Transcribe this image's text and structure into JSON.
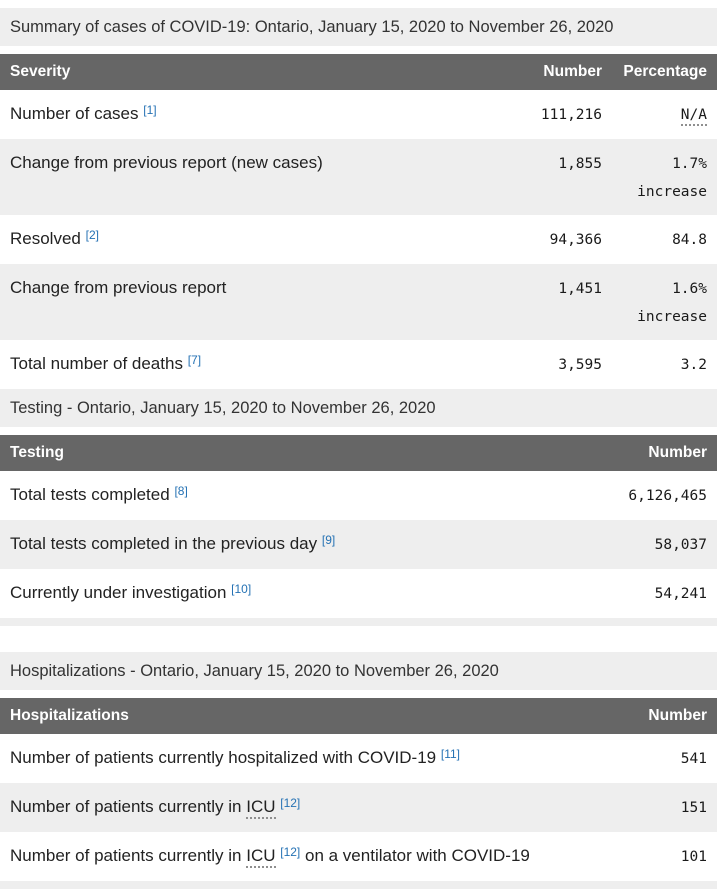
{
  "colors": {
    "header_bg": "#666666",
    "header_text": "#ffffff",
    "zebra_stripe": "#eeeeee",
    "caption_bg": "#eeeeee",
    "footnote_link": "#2572b4",
    "label_text": "#222222"
  },
  "summary_table": {
    "caption": "Summary of cases of COVID-19: Ontario, January 15, 2020 to November 26, 2020",
    "col_label": "Severity",
    "col_number": "Number",
    "col_percentage": "Percentage",
    "rows": {
      "cases": {
        "label": "Number of cases",
        "footnote": "[1]",
        "number": "111,216",
        "percent": "N/A"
      },
      "change_new": {
        "label": "Change from previous report (new cases)",
        "number": "1,855",
        "percent": "1.7%",
        "percent_note": "increase"
      },
      "resolved": {
        "label": "Resolved",
        "footnote": "[2]",
        "number": "94,366",
        "percent": "84.8"
      },
      "change_prev": {
        "label": "Change from previous report",
        "number": "1,451",
        "percent": "1.6%",
        "percent_note": "increase"
      },
      "deaths": {
        "label": "Total number of deaths",
        "footnote": "[7]",
        "number": "3,595",
        "percent": "3.2"
      }
    }
  },
  "testing_table": {
    "caption": "Testing - Ontario, January 15, 2020 to November 26, 2020",
    "col_label": "Testing",
    "col_number": "Number",
    "rows": {
      "total_tests": {
        "label": "Total tests completed",
        "footnote": "[8]",
        "number": "6,126,465"
      },
      "previous_day": {
        "label": "Total tests completed in the previous day",
        "footnote": "[9]",
        "number": "58,037"
      },
      "under_investigation": {
        "label": "Currently under investigation",
        "footnote": "[10]",
        "number": "54,241"
      }
    }
  },
  "hospitalizations_table": {
    "caption": "Hospitalizations - Ontario, January 15, 2020 to November 26, 2020",
    "col_label": "Hospitalizations",
    "col_number": "Number",
    "rows": {
      "hospitalized": {
        "label": "Number of patients currently hospitalized with COVID-19",
        "footnote": "[11]",
        "number": "541"
      },
      "icu": {
        "label": "Number of patients currently in",
        "abbr": "ICU",
        "footnote": "[12]",
        "number": "151"
      },
      "icu_ventilator": {
        "label": "Number of patients currently in",
        "abbr": "ICU",
        "footnote": "[12]",
        "label_post": "on a ventilator with COVID-19",
        "number": "101"
      }
    }
  }
}
